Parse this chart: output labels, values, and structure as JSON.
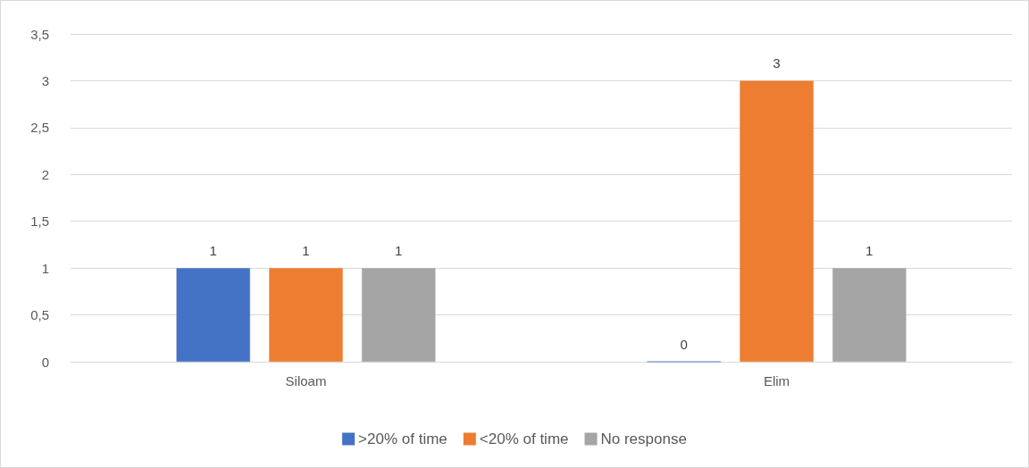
{
  "chart_data": {
    "type": "bar",
    "categories": [
      "Siloam",
      "Elim"
    ],
    "series": [
      {
        "name": ">20% of time",
        "color": "#4472c4",
        "values": [
          1,
          0
        ]
      },
      {
        "name": "<20% of time",
        "color": "#ed7d31",
        "values": [
          1,
          3
        ]
      },
      {
        "name": "No response",
        "color": "#a5a5a5",
        "values": [
          1,
          1
        ]
      }
    ],
    "ylim": [
      0,
      3.5
    ],
    "yticks": [
      0,
      {
        "value": 0.5,
        "label": "0,5"
      },
      1,
      {
        "value": 1.5,
        "label": "1,5"
      },
      2,
      {
        "value": 2.5,
        "label": "2,5"
      },
      3,
      {
        "value": 3.5,
        "label": "3,5"
      }
    ],
    "grid": "y",
    "legend": "bottom",
    "data_labels": true
  }
}
